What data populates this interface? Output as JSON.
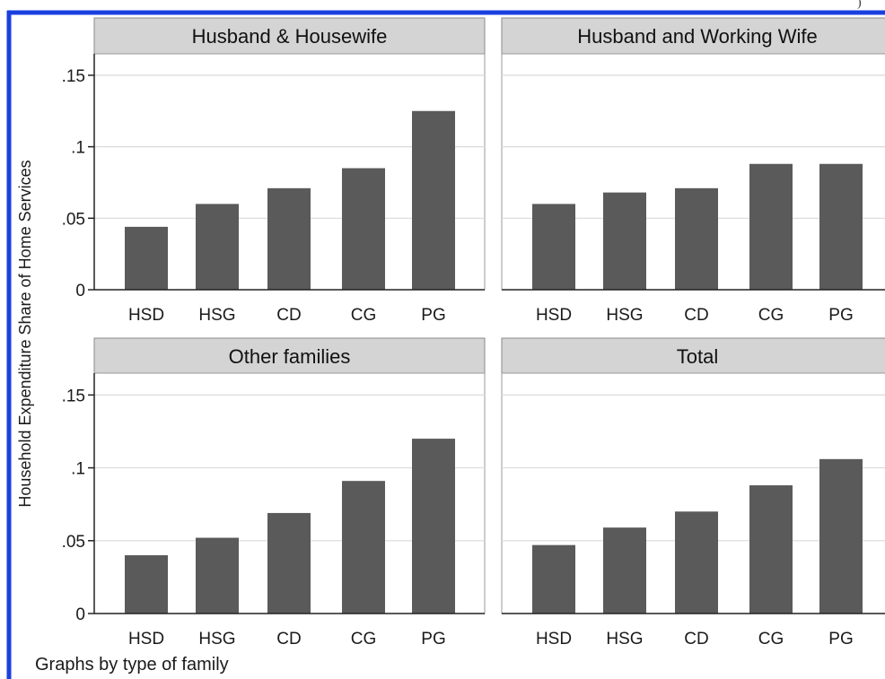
{
  "note": "Graphs by type of family",
  "corner_mark": ")",
  "colors": {
    "border": "#1a3fe0",
    "bar": "#5a5a5a",
    "strip": "#d4d4d4",
    "grid": "#dadada",
    "axis": "#222222"
  },
  "chart_data": {
    "type": "bar",
    "ylabel": "Household Expenditure Share of Home Services",
    "ylim": [
      0,
      0.165
    ],
    "yticks": [
      0,
      0.05,
      0.1,
      0.15
    ],
    "ytick_labels": [
      "0",
      ".05",
      ".1",
      ".15"
    ],
    "categories": [
      "HSD",
      "HSG",
      "CD",
      "CG",
      "PG"
    ],
    "grid": true,
    "panels": [
      {
        "title": "Husband & Housewife",
        "values": [
          0.044,
          0.06,
          0.071,
          0.085,
          0.125
        ]
      },
      {
        "title": "Husband and Working Wife",
        "values": [
          0.06,
          0.068,
          0.071,
          0.088,
          0.088
        ]
      },
      {
        "title": "Other families",
        "values": [
          0.04,
          0.052,
          0.069,
          0.091,
          0.12
        ]
      },
      {
        "title": "Total",
        "values": [
          0.047,
          0.059,
          0.07,
          0.088,
          0.106
        ]
      }
    ]
  }
}
